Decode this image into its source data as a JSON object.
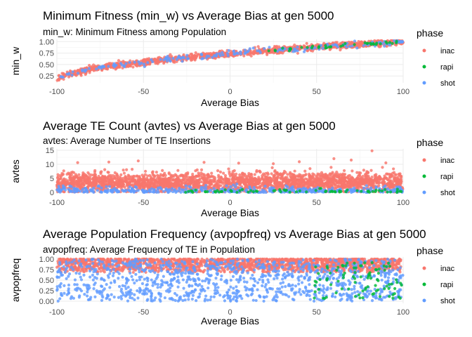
{
  "chart_data": [
    {
      "type": "scatter",
      "title": "Minimum Fitness (min_w) vs Average Bias at gen 5000",
      "subtitle": "min_w: Minimum Fitness among Population",
      "xlabel": "Average Bias",
      "ylabel": "min_w",
      "xlim": [
        -100,
        100
      ],
      "ylim": [
        0.1,
        1.05
      ],
      "x_ticks": [
        -100,
        -50,
        0,
        50,
        100
      ],
      "y_ticks": [
        0.25,
        0.5,
        0.75,
        1.0
      ],
      "y_tick_labels": [
        "0.25",
        "0.50",
        "0.75",
        "1.00"
      ],
      "grid": true,
      "legend_title": "phase",
      "legend_position": "right",
      "pattern": "fitness",
      "series": [
        {
          "name": "inac",
          "color": "#F8766D"
        },
        {
          "name": "rapi",
          "color": "#00BA38"
        },
        {
          "name": "shot",
          "color": "#619CFF"
        }
      ]
    },
    {
      "type": "scatter",
      "title": "Average TE Count (avtes) vs Average Bias at gen 5000",
      "subtitle": "avtes: Average Number of TE Insertions",
      "xlabel": "Average Bias",
      "ylabel": "avtes",
      "xlim": [
        -100,
        100
      ],
      "ylim": [
        -0.5,
        15.5
      ],
      "x_ticks": [
        -100,
        -50,
        0,
        50,
        100
      ],
      "y_ticks": [
        0,
        5,
        10,
        15
      ],
      "y_tick_labels": [
        "0",
        "5",
        "10",
        "15"
      ],
      "grid": true,
      "legend_title": "phase",
      "legend_position": "right",
      "pattern": "count",
      "series": [
        {
          "name": "inac",
          "color": "#F8766D"
        },
        {
          "name": "rapi",
          "color": "#00BA38"
        },
        {
          "name": "shot",
          "color": "#619CFF"
        }
      ]
    },
    {
      "type": "scatter",
      "title": "Average Population Frequency (avpopfreq) vs Average Bias at gen 5000",
      "subtitle": "avpopfreq: Average Frequency of TE in Population",
      "xlabel": "Average Bias",
      "ylabel": "avpopfreq",
      "xlim": [
        -100,
        100
      ],
      "ylim": [
        -0.05,
        1.05
      ],
      "x_ticks": [
        -100,
        -50,
        0,
        50,
        100
      ],
      "y_ticks": [
        0,
        0.25,
        0.5,
        0.75,
        1.0
      ],
      "y_tick_labels": [
        "0.00",
        "0.25",
        "0.50",
        "0.75",
        "1.00"
      ],
      "grid": true,
      "legend_title": "phase",
      "legend_position": "right",
      "pattern": "freq",
      "series": [
        {
          "name": "inac",
          "color": "#F8766D"
        },
        {
          "name": "rapi",
          "color": "#00BA38"
        },
        {
          "name": "shot",
          "color": "#619CFF"
        }
      ]
    }
  ]
}
